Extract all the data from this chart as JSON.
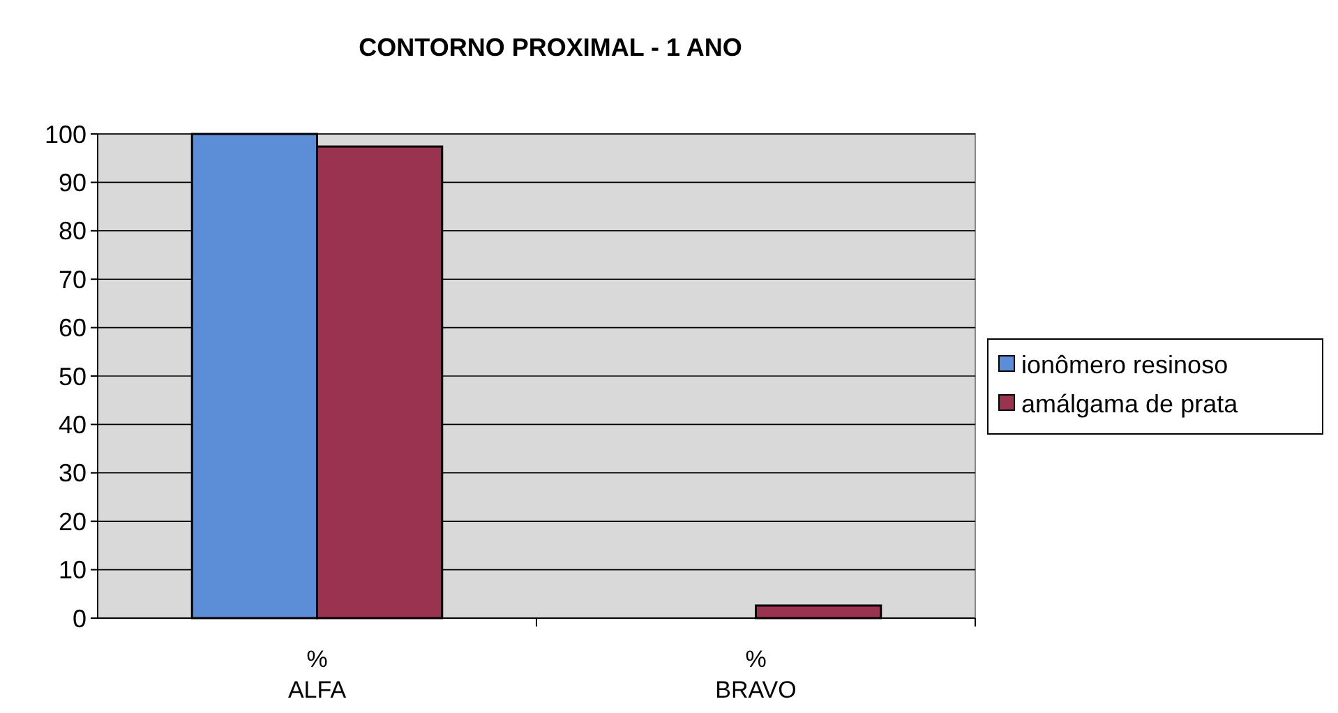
{
  "chart_data": {
    "type": "bar",
    "title": "CONTORNO PROXIMAL - 1 ANO",
    "categories": [
      "%\nALFA",
      "%\nBRAVO"
    ],
    "series": [
      {
        "name": "ionômero resinoso",
        "color": "#5b8ed6",
        "values": [
          100,
          0
        ]
      },
      {
        "name": "amálgama de prata",
        "color": "#993350",
        "values": [
          97.4,
          2.6
        ]
      }
    ],
    "ylim": [
      0,
      100
    ],
    "yticks": [
      0,
      10,
      20,
      30,
      40,
      50,
      60,
      70,
      80,
      90,
      100
    ],
    "grid": "y",
    "legend": "right"
  }
}
